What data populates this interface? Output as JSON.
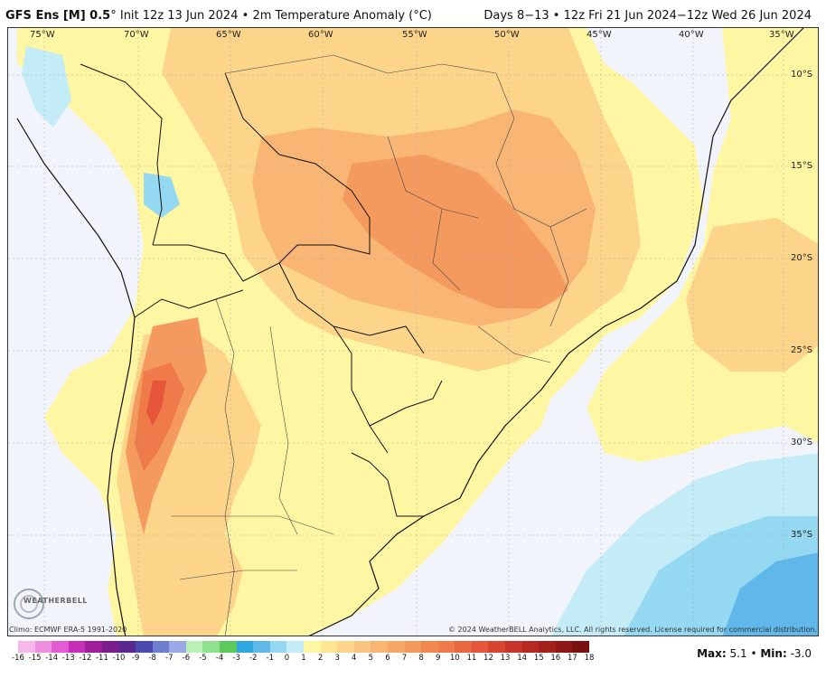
{
  "header": {
    "model": "GFS Ens [M] 0.5",
    "degree_symbol": "°",
    "init": "Init 12z 13 Jun 2024",
    "separator": "•",
    "variable": "2m Temperature Anomaly (°C)",
    "valid": "Days 8−13 • 12z Fri 21 Jun 2024−12z Wed 26 Jun 2024"
  },
  "map": {
    "lon_labels": [
      "75°W",
      "70°W",
      "65°W",
      "60°W",
      "55°W",
      "50°W",
      "45°W",
      "40°W",
      "35°W"
    ],
    "lat_labels": [
      "10°S",
      "15°S",
      "20°S",
      "25°S",
      "30°S",
      "35°S"
    ],
    "colors": {
      "background": "#f2f4fb",
      "pale_yellow": "#fef6a3",
      "light_orange": "#fdd58a",
      "orange": "#f9b574",
      "dark_orange": "#f49a5e",
      "red_orange": "#ef7a4a",
      "red": "#e6563a",
      "light_blue": "#c4ecf7",
      "blue": "#94d8f2",
      "deep_blue": "#5fb7ea"
    }
  },
  "footer": {
    "climo": "Climo: ECMWF ERA-5 1991-2020",
    "copyright": "© 2024 WeatherBELL Analytics, LLC. All rights reserved. License required for commercial distribution.",
    "logo_text": "WEATHERBELL"
  },
  "colorbar": {
    "labels": [
      "-16",
      "-15",
      "-14",
      "-13",
      "-12",
      "-11",
      "-10",
      "-9",
      "-8",
      "-7",
      "-6",
      "-5",
      "-4",
      "-3",
      "-2",
      "-1",
      "0",
      "1",
      "2",
      "3",
      "4",
      "5",
      "6",
      "7",
      "8",
      "9",
      "10",
      "11",
      "12",
      "13",
      "14",
      "15",
      "16",
      "17",
      "18"
    ],
    "colors": [
      "#f5b8e8",
      "#ef8fe0",
      "#e35cd3",
      "#c52fb8",
      "#9e1e9a",
      "#7a1c8c",
      "#5a2890",
      "#4a4ab0",
      "#6e7fd0",
      "#9aa8e6",
      "#b9f0b9",
      "#8fe08f",
      "#5cc95c",
      "#2fa8df",
      "#5fb7ea",
      "#94d8f2",
      "#c4ecf7",
      "#fef6a3",
      "#fde68f",
      "#fdd58a",
      "#fbc47e",
      "#f9b574",
      "#f6a667",
      "#f49a5e",
      "#f08850",
      "#ef7a4a",
      "#ea6840",
      "#e6563a",
      "#d94430",
      "#c93528",
      "#b62a22",
      "#a3201c",
      "#8e1717",
      "#7a1111",
      "#660b0b"
    ]
  },
  "stats": {
    "max_label": "Max:",
    "max_value": "5.1",
    "separator": "•",
    "min_label": "Min:",
    "min_value": "-3.0"
  }
}
